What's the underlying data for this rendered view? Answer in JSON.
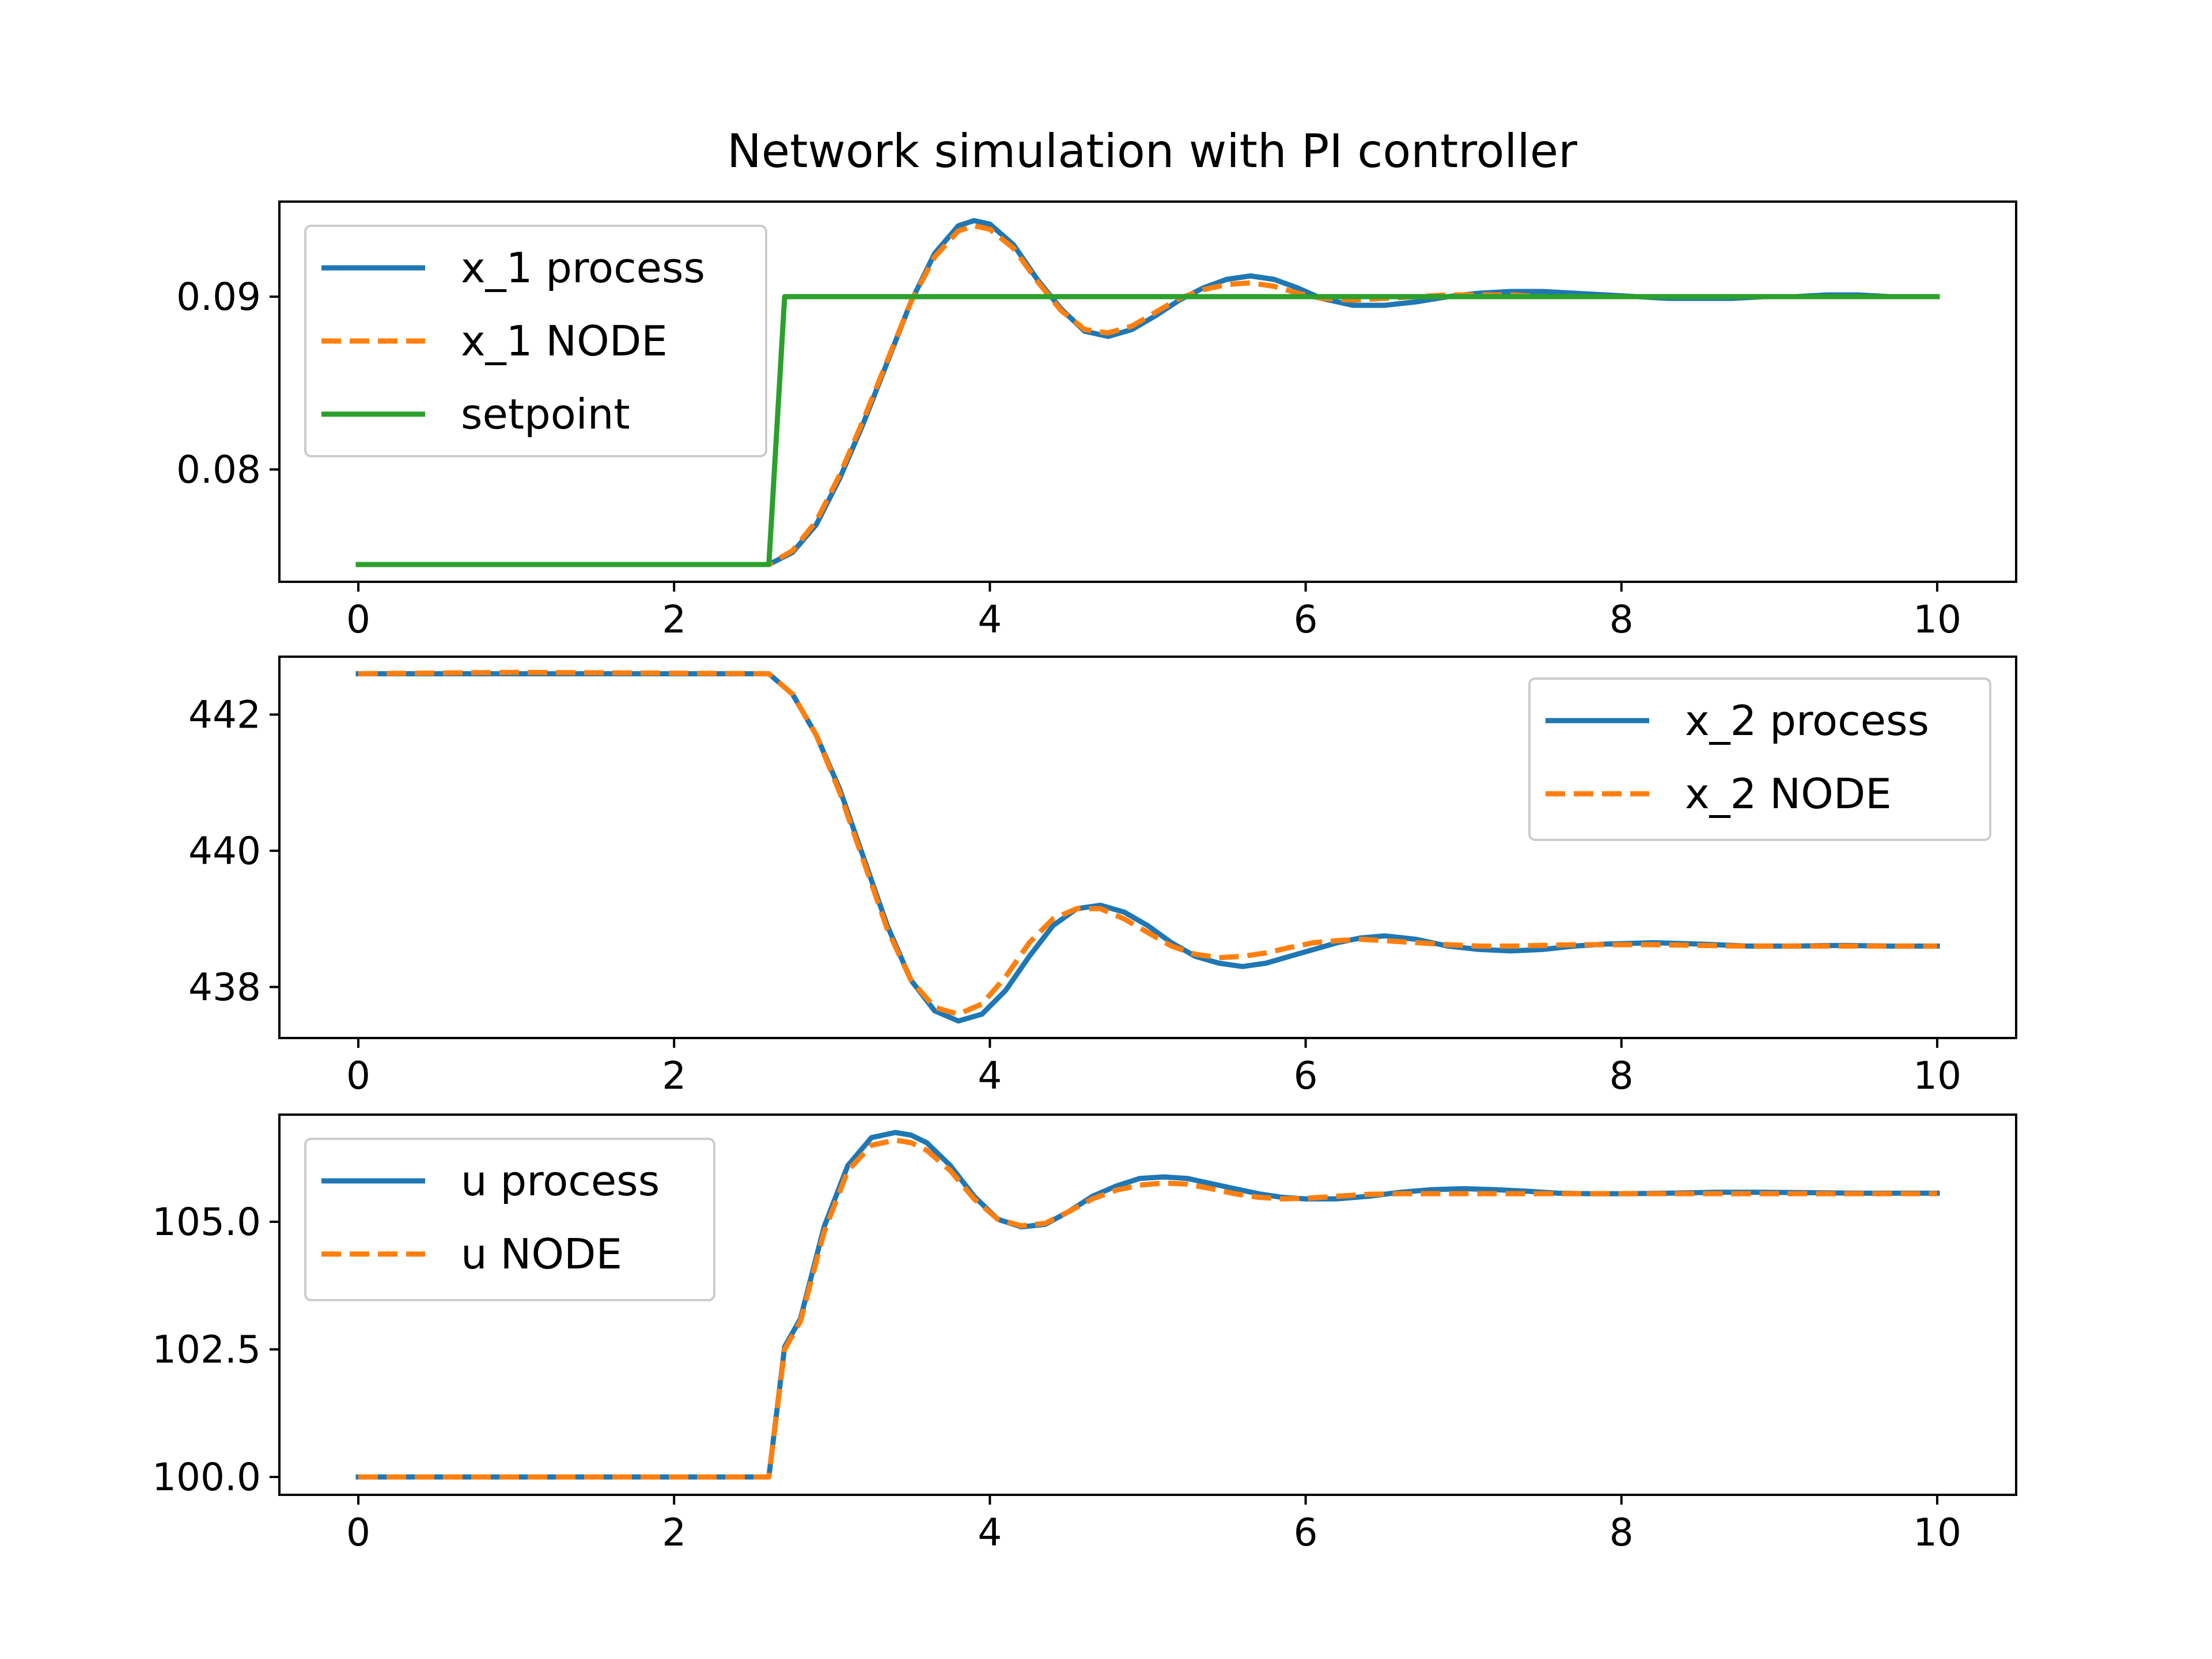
{
  "figure": {
    "title": "Network simulation with PI controller"
  },
  "chart_data": [
    {
      "type": "line",
      "title": "Network simulation with PI controller",
      "xlabel": "",
      "ylabel": "",
      "xlim": [
        -0.5,
        10.5
      ],
      "ylim": [
        0.0735,
        0.0955
      ],
      "xticks": [
        0,
        2,
        4,
        6,
        8,
        10
      ],
      "xtick_labels": [
        "0",
        "2",
        "4",
        "6",
        "8",
        "10"
      ],
      "yticks": [
        0.08,
        0.09
      ],
      "ytick_labels": [
        "0.08",
        "0.09"
      ],
      "grid": false,
      "legend": "upper-left",
      "series": [
        {
          "name": "x_1 process",
          "color": "#1f77b4",
          "style": "solid",
          "x": [
            0,
            2.6,
            2.75,
            2.9,
            3.05,
            3.2,
            3.35,
            3.5,
            3.65,
            3.8,
            3.9,
            4.0,
            4.15,
            4.3,
            4.45,
            4.6,
            4.75,
            4.9,
            5.05,
            5.2,
            5.35,
            5.5,
            5.65,
            5.8,
            5.95,
            6.1,
            6.3,
            6.5,
            6.7,
            6.9,
            7.1,
            7.3,
            7.5,
            7.7,
            7.9,
            8.1,
            8.3,
            8.5,
            8.7,
            8.9,
            9.1,
            9.3,
            9.5,
            9.7,
            10
          ],
          "y": [
            0.0745,
            0.0745,
            0.0752,
            0.0768,
            0.0795,
            0.0827,
            0.0862,
            0.0897,
            0.0925,
            0.0941,
            0.0944,
            0.0942,
            0.093,
            0.091,
            0.0893,
            0.088,
            0.0877,
            0.0881,
            0.0889,
            0.0898,
            0.0905,
            0.091,
            0.0912,
            0.091,
            0.0905,
            0.0899,
            0.0895,
            0.0895,
            0.0897,
            0.09,
            0.0902,
            0.0903,
            0.0903,
            0.0902,
            0.0901,
            0.09,
            0.0899,
            0.0899,
            0.0899,
            0.09,
            0.09,
            0.0901,
            0.0901,
            0.09,
            0.09
          ]
        },
        {
          "name": "x_1 NODE",
          "color": "#ff7f0e",
          "style": "dashed",
          "x": [
            0,
            2.6,
            2.75,
            2.9,
            3.05,
            3.2,
            3.35,
            3.5,
            3.65,
            3.8,
            3.9,
            4.0,
            4.15,
            4.3,
            4.45,
            4.6,
            4.75,
            4.9,
            5.05,
            5.2,
            5.35,
            5.5,
            5.65,
            5.8,
            5.95,
            6.1,
            6.3,
            6.5,
            6.7,
            6.9,
            7.1,
            7.3,
            7.5,
            7.7,
            7.9,
            8.1,
            8.3,
            8.5,
            8.7,
            8.9,
            9.1,
            9.3,
            9.5,
            9.7,
            10
          ],
          "y": [
            0.0745,
            0.0745,
            0.0753,
            0.077,
            0.0797,
            0.0829,
            0.0863,
            0.0897,
            0.0923,
            0.0938,
            0.0941,
            0.0939,
            0.0928,
            0.0909,
            0.0892,
            0.0881,
            0.0879,
            0.0883,
            0.0891,
            0.0899,
            0.0904,
            0.0907,
            0.0908,
            0.0906,
            0.0902,
            0.0899,
            0.0898,
            0.0899,
            0.09,
            0.0901,
            0.0901,
            0.0901,
            0.09,
            0.09,
            0.09,
            0.09,
            0.09,
            0.09,
            0.09,
            0.09,
            0.09,
            0.09,
            0.09,
            0.09,
            0.09
          ]
        },
        {
          "name": "setpoint",
          "color": "#2ca02c",
          "style": "solid",
          "x": [
            0,
            2.6,
            2.7,
            10
          ],
          "y": [
            0.0745,
            0.0745,
            0.09,
            0.09
          ]
        }
      ]
    },
    {
      "type": "line",
      "xlabel": "",
      "ylabel": "",
      "xlim": [
        -0.5,
        10.5
      ],
      "ylim": [
        437.25,
        442.85
      ],
      "xticks": [
        0,
        2,
        4,
        6,
        8,
        10
      ],
      "xtick_labels": [
        "0",
        "2",
        "4",
        "6",
        "8",
        "10"
      ],
      "yticks": [
        438,
        440,
        442
      ],
      "ytick_labels": [
        "438",
        "440",
        "442"
      ],
      "grid": false,
      "legend": "upper-right",
      "series": [
        {
          "name": "x_2 process",
          "color": "#1f77b4",
          "style": "solid",
          "x": [
            0,
            1,
            2.6,
            2.75,
            2.9,
            3.05,
            3.2,
            3.35,
            3.5,
            3.65,
            3.8,
            3.95,
            4.1,
            4.25,
            4.4,
            4.55,
            4.7,
            4.85,
            5.0,
            5.15,
            5.3,
            5.45,
            5.6,
            5.75,
            5.9,
            6.05,
            6.2,
            6.35,
            6.5,
            6.7,
            6.9,
            7.1,
            7.3,
            7.5,
            7.7,
            7.9,
            8.2,
            8.5,
            8.8,
            9.1,
            9.4,
            9.7,
            10
          ],
          "y": [
            442.6,
            442.6,
            442.6,
            442.3,
            441.7,
            440.9,
            439.9,
            438.9,
            438.1,
            437.65,
            437.5,
            437.6,
            437.95,
            438.45,
            438.9,
            439.15,
            439.2,
            439.1,
            438.9,
            438.65,
            438.45,
            438.35,
            438.3,
            438.35,
            438.45,
            438.55,
            438.65,
            438.72,
            438.75,
            438.7,
            438.6,
            438.55,
            438.53,
            438.55,
            438.6,
            438.63,
            438.65,
            438.63,
            438.6,
            438.6,
            438.61,
            438.6,
            438.6
          ]
        },
        {
          "name": "x_2 NODE",
          "color": "#ff7f0e",
          "style": "dashed",
          "x": [
            0,
            1,
            2.6,
            2.75,
            2.9,
            3.05,
            3.2,
            3.35,
            3.5,
            3.65,
            3.8,
            3.95,
            4.1,
            4.25,
            4.4,
            4.55,
            4.7,
            4.85,
            5.0,
            5.15,
            5.3,
            5.45,
            5.6,
            5.75,
            5.9,
            6.05,
            6.2,
            6.35,
            6.5,
            6.7,
            6.9,
            7.1,
            7.3,
            7.5,
            7.7,
            7.9,
            8.2,
            8.5,
            8.8,
            9.1,
            9.4,
            9.7,
            10
          ],
          "y": [
            442.6,
            442.62,
            442.6,
            442.3,
            441.7,
            440.85,
            439.85,
            438.85,
            438.1,
            437.7,
            437.6,
            437.75,
            438.15,
            438.65,
            439.0,
            439.15,
            439.15,
            439.0,
            438.8,
            438.6,
            438.48,
            438.43,
            438.45,
            438.5,
            438.58,
            438.65,
            438.68,
            438.7,
            438.68,
            438.65,
            438.62,
            438.6,
            438.6,
            438.61,
            438.62,
            438.62,
            438.62,
            438.61,
            438.6,
            438.6,
            438.6,
            438.6,
            438.6
          ]
        }
      ]
    },
    {
      "type": "line",
      "xlabel": "",
      "ylabel": "",
      "xlim": [
        -0.5,
        10.5
      ],
      "ylim": [
        99.65,
        107.1
      ],
      "xticks": [
        0,
        2,
        4,
        6,
        8,
        10
      ],
      "xtick_labels": [
        "0",
        "2",
        "4",
        "6",
        "8",
        "10"
      ],
      "yticks": [
        100.0,
        102.5,
        105.0
      ],
      "ytick_labels": [
        "100.0",
        "102.5",
        "105.0"
      ],
      "grid": false,
      "legend": "upper-left",
      "series": [
        {
          "name": "u process",
          "color": "#1f77b4",
          "style": "solid",
          "x": [
            0,
            1,
            2.6,
            2.7,
            2.8,
            2.95,
            3.1,
            3.25,
            3.4,
            3.5,
            3.6,
            3.75,
            3.9,
            4.05,
            4.2,
            4.35,
            4.5,
            4.65,
            4.8,
            4.95,
            5.1,
            5.25,
            5.4,
            5.55,
            5.7,
            5.85,
            6.0,
            6.2,
            6.4,
            6.6,
            6.8,
            7.0,
            7.2,
            7.4,
            7.6,
            7.8,
            8.0,
            8.3,
            8.6,
            8.9,
            9.2,
            9.5,
            10
          ],
          "y": [
            100.0,
            100.0,
            100.0,
            102.55,
            103.1,
            104.9,
            106.1,
            106.65,
            106.75,
            106.7,
            106.55,
            106.1,
            105.5,
            105.05,
            104.9,
            104.95,
            105.2,
            105.5,
            105.7,
            105.85,
            105.88,
            105.85,
            105.75,
            105.65,
            105.55,
            105.48,
            105.45,
            105.45,
            105.5,
            105.58,
            105.63,
            105.65,
            105.63,
            105.6,
            105.56,
            105.55,
            105.55,
            105.56,
            105.58,
            105.58,
            105.57,
            105.56,
            105.56
          ]
        },
        {
          "name": "u NODE",
          "color": "#ff7f0e",
          "style": "dashed",
          "x": [
            0,
            1,
            2.6,
            2.7,
            2.8,
            2.95,
            3.1,
            3.25,
            3.4,
            3.5,
            3.6,
            3.75,
            3.9,
            4.05,
            4.2,
            4.35,
            4.5,
            4.65,
            4.8,
            4.95,
            5.1,
            5.25,
            5.4,
            5.55,
            5.7,
            5.85,
            6.0,
            6.2,
            6.4,
            6.6,
            6.8,
            7.0,
            7.2,
            7.4,
            7.6,
            7.8,
            8.0,
            8.3,
            8.6,
            8.9,
            9.2,
            9.5,
            10
          ],
          "y": [
            100.0,
            100.0,
            100.0,
            102.5,
            103.05,
            104.8,
            106.0,
            106.5,
            106.6,
            106.55,
            106.4,
            106.0,
            105.45,
            105.05,
            104.92,
            104.97,
            105.2,
            105.45,
            105.62,
            105.72,
            105.76,
            105.74,
            105.65,
            105.55,
            105.48,
            105.45,
            105.46,
            105.5,
            105.54,
            105.55,
            105.55,
            105.55,
            105.55,
            105.55,
            105.55,
            105.55,
            105.55,
            105.55,
            105.55,
            105.55,
            105.55,
            105.55,
            105.55
          ]
        }
      ]
    }
  ]
}
